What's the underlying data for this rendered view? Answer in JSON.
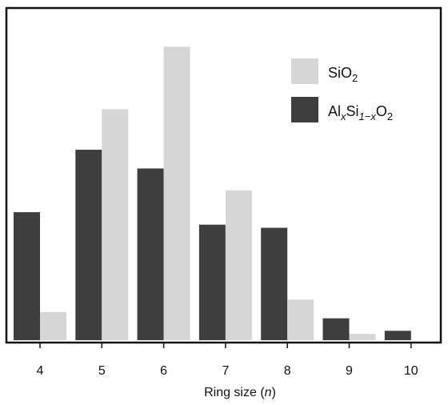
{
  "chart_data": {
    "type": "bar",
    "categories": [
      "4",
      "5",
      "6",
      "7",
      "8",
      "9",
      "10"
    ],
    "series": [
      {
        "name": "Al_xSi_1-xO_2",
        "name_parts": {
          "base1": "Al",
          "sub1": "x",
          "base2": "Si",
          "sub2": "1−x",
          "base3": "O",
          "sub3": "2"
        },
        "color": "#3e3e3e",
        "values": [
          41,
          61,
          55,
          37,
          36,
          7,
          3
        ]
      },
      {
        "name": "SiO_2",
        "name_parts": {
          "base": "SiO",
          "sub": "2"
        },
        "color": "#d6d6d6",
        "values": [
          9,
          74,
          94,
          48,
          13,
          2,
          0
        ]
      }
    ],
    "title": "",
    "xlabel": "Ring size",
    "xlabel_var": "n",
    "ylabel": "",
    "ylim": [
      0,
      100
    ],
    "y_ticks_shown": false,
    "grid": false,
    "legend": "top-right"
  }
}
